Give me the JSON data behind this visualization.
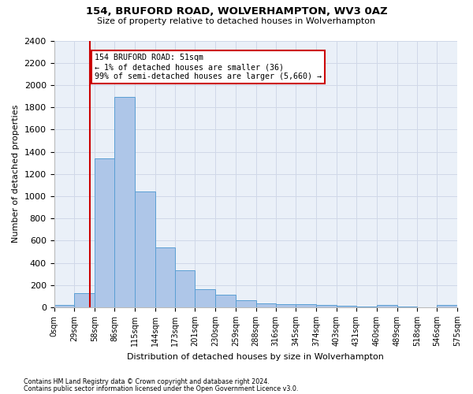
{
  "title": "154, BRUFORD ROAD, WOLVERHAMPTON, WV3 0AZ",
  "subtitle": "Size of property relative to detached houses in Wolverhampton",
  "xlabel": "Distribution of detached houses by size in Wolverhampton",
  "ylabel": "Number of detached properties",
  "footer1": "Contains HM Land Registry data © Crown copyright and database right 2024.",
  "footer2": "Contains public sector information licensed under the Open Government Licence v3.0.",
  "bin_edges": [
    0,
    29,
    58,
    86,
    115,
    144,
    173,
    201,
    230,
    259,
    288,
    316,
    345,
    374,
    403,
    431,
    460,
    489,
    518,
    546,
    575
  ],
  "bar_heights": [
    20,
    125,
    1340,
    1890,
    1045,
    540,
    335,
    165,
    110,
    63,
    38,
    30,
    25,
    22,
    15,
    5,
    20,
    5,
    0,
    18
  ],
  "bar_color": "#aec6e8",
  "bar_edge_color": "#5a9fd4",
  "property_size": 51,
  "property_line_color": "#cc0000",
  "annotation_line1": "154 BRUFORD ROAD: 51sqm",
  "annotation_line2": "← 1% of detached houses are smaller (36)",
  "annotation_line3": "99% of semi-detached houses are larger (5,660) →",
  "annotation_box_color": "#cc0000",
  "ylim": [
    0,
    2400
  ],
  "yticks": [
    0,
    200,
    400,
    600,
    800,
    1000,
    1200,
    1400,
    1600,
    1800,
    2000,
    2200,
    2400
  ],
  "grid_color": "#d0d8e8",
  "bg_color": "#eaf0f8"
}
